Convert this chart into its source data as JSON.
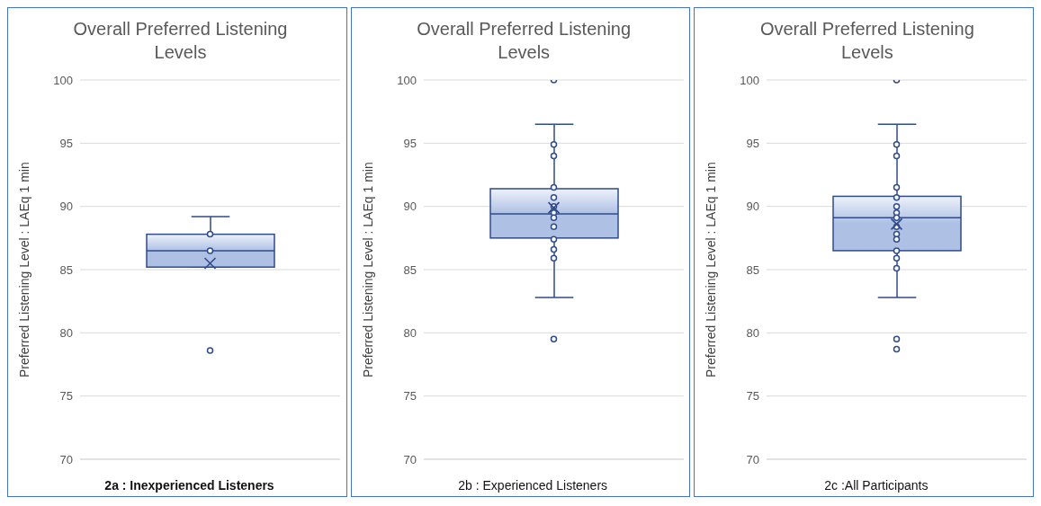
{
  "chart_data": [
    {
      "type": "box",
      "title": "Overall Preferred Listening Levels",
      "ylabel": "Preferred Listening Level : LAEq 1 min",
      "xlabel": "2a : Inexperienced Listeners",
      "categories": [
        null
      ],
      "color": "#2f4b8a",
      "boxes": [
        {
          "low": 85.2,
          "q1": 85.2,
          "median": 86.5,
          "q3": 87.8,
          "high": 89.2,
          "mean": 85.5,
          "outliers": [
            78.6
          ]
        }
      ],
      "series": [
        {
          "type": "scatter",
          "color": "#2f4b8a",
          "x": [
            null,
            null
          ],
          "values": [
            87.8,
            86.5
          ]
        }
      ],
      "marker": "circle",
      "ylim": [
        70,
        100
      ],
      "yticks": [
        70,
        75,
        80,
        85,
        90,
        95,
        100
      ],
      "grid": "y"
    },
    {
      "type": "box",
      "title": "Overall Preferred Listening Levels",
      "ylabel": "Preferred Listening Level : LAEq 1 min",
      "xlabel": "2b : Experienced Listeners",
      "categories": [
        null
      ],
      "color": "#2f4b8a",
      "boxes": [
        {
          "low": 82.8,
          "q1": 87.5,
          "median": 89.4,
          "q3": 91.4,
          "high": 96.5,
          "mean": 89.9,
          "outliers": [
            100,
            79.5
          ]
        }
      ],
      "series": [
        {
          "type": "scatter",
          "color": "#2f4b8a",
          "x": [
            null,
            null,
            null,
            null,
            null,
            null,
            null,
            null,
            null,
            null,
            null
          ],
          "values": [
            94.9,
            94.0,
            91.5,
            90.7,
            90.0,
            89.5,
            89.1,
            88.4,
            87.4,
            86.6,
            85.9
          ]
        }
      ],
      "marker": "circle",
      "ylim": [
        70,
        100
      ],
      "yticks": [
        70,
        75,
        80,
        85,
        90,
        95,
        100
      ],
      "grid": "y"
    },
    {
      "type": "box",
      "title": "Overall Preferred Listening Levels",
      "ylabel": "Preferred Listening Level : LAEq 1 min",
      "xlabel": "2c :All Participants",
      "categories": [
        null
      ],
      "color": "#2f4b8a",
      "boxes": [
        {
          "low": 82.8,
          "q1": 86.5,
          "median": 89.1,
          "q3": 90.8,
          "high": 96.5,
          "mean": 88.6,
          "outliers": [
            100,
            79.5,
            78.7
          ]
        }
      ],
      "series": [
        {
          "type": "scatter",
          "color": "#2f4b8a",
          "x": [
            null,
            null,
            null,
            null,
            null,
            null,
            null,
            null,
            null,
            null,
            null,
            null,
            null
          ],
          "values": [
            94.9,
            94.0,
            91.5,
            90.7,
            90.0,
            89.5,
            89.1,
            88.4,
            87.8,
            87.4,
            86.5,
            85.9,
            85.1
          ]
        }
      ],
      "marker": "circle",
      "ylim": [
        70,
        100
      ],
      "yticks": [
        70,
        75,
        80,
        85,
        90,
        95,
        100
      ],
      "grid": "y"
    }
  ]
}
